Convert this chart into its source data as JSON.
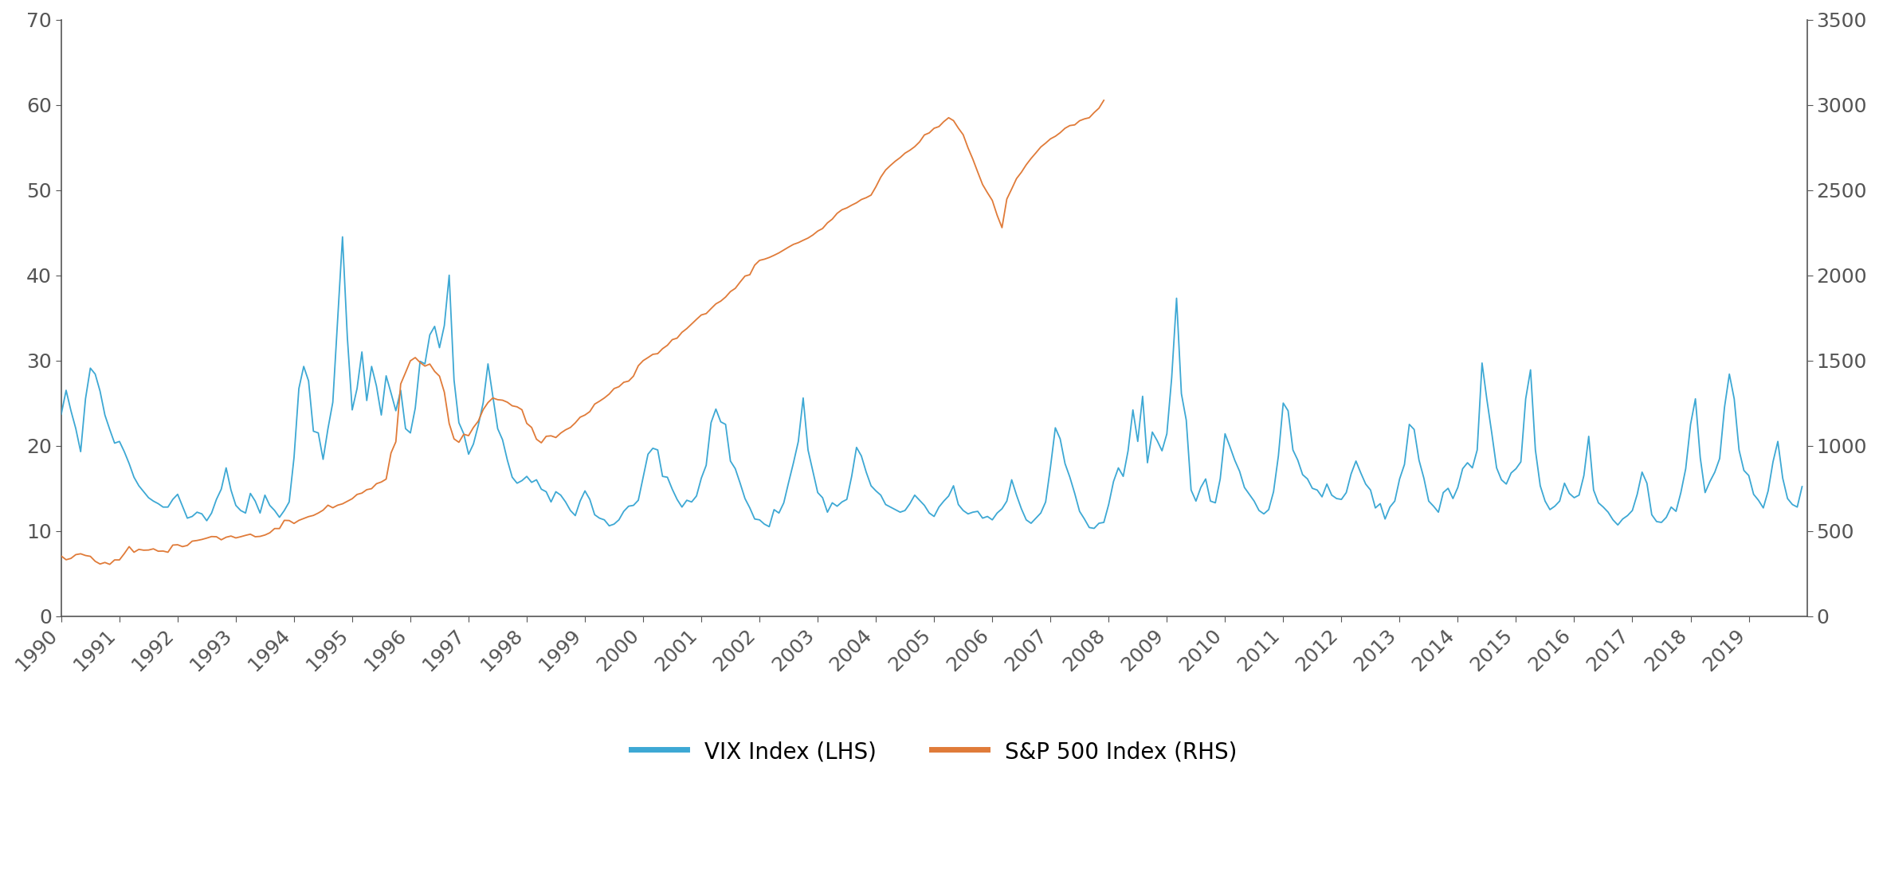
{
  "vix_color": "#3da8d4",
  "sp500_color": "#e07b39",
  "vix_label": "VIX Index (LHS)",
  "sp500_label": "S&P 500 Index (RHS)",
  "lhs_ylim": [
    0,
    70
  ],
  "rhs_ylim": [
    0,
    3500
  ],
  "lhs_yticks": [
    0,
    10,
    20,
    30,
    40,
    50,
    60,
    70
  ],
  "rhs_yticks": [
    0,
    500,
    1000,
    1500,
    2000,
    2500,
    3000,
    3500
  ],
  "xtick_labels": [
    "1990",
    "1991",
    "1992",
    "1993",
    "1994",
    "1995",
    "1996",
    "1997",
    "1998",
    "1999",
    "2000",
    "2001",
    "2002",
    "2003",
    "2004",
    "2005",
    "2006",
    "2007",
    "2008",
    "2009",
    "2010",
    "2011",
    "2012",
    "2013",
    "2014",
    "2015",
    "2016",
    "2017",
    "2018",
    "2019"
  ],
  "background_color": "#ffffff",
  "linewidth": 1.3,
  "spine_color": "#555555",
  "tick_labelsize": 18,
  "legend_fontsize": 20,
  "vix_data": [
    23.7,
    26.5,
    24.1,
    22.0,
    19.3,
    25.5,
    29.1,
    28.4,
    26.4,
    23.6,
    21.9,
    20.3,
    20.5,
    19.3,
    17.9,
    16.3,
    15.3,
    14.6,
    13.9,
    13.5,
    13.2,
    12.8,
    12.8,
    13.7,
    14.3,
    12.9,
    11.5,
    11.7,
    12.2,
    12.0,
    11.2,
    12.1,
    13.7,
    14.9,
    17.4,
    14.8,
    13.0,
    12.4,
    12.1,
    14.4,
    13.5,
    12.1,
    14.2,
    13.0,
    12.4,
    11.6,
    12.4,
    13.4,
    18.6,
    26.7,
    29.3,
    27.6,
    21.7,
    21.5,
    18.4,
    22.0,
    25.1,
    34.8,
    44.5,
    32.7,
    24.2,
    26.7,
    31.0,
    25.3,
    29.3,
    27.0,
    23.6,
    28.2,
    26.2,
    24.1,
    26.5,
    22.0,
    21.5,
    24.4,
    29.9,
    29.6,
    33.0,
    34.0,
    31.5,
    34.1,
    40.0,
    27.7,
    22.7,
    21.4,
    19.0,
    20.2,
    22.4,
    25.0,
    29.6,
    25.8,
    22.0,
    20.7,
    18.3,
    16.3,
    15.6,
    15.9,
    16.4,
    15.7,
    16.0,
    14.9,
    14.6,
    13.4,
    14.6,
    14.2,
    13.4,
    12.4,
    11.8,
    13.5,
    14.7,
    13.7,
    11.9,
    11.5,
    11.3,
    10.6,
    10.8,
    11.3,
    12.3,
    12.9,
    13.0,
    13.6,
    16.3,
    19.0,
    19.7,
    19.5,
    16.4,
    16.3,
    14.9,
    13.7,
    12.8,
    13.6,
    13.4,
    14.1,
    16.2,
    17.7,
    22.7,
    24.3,
    22.8,
    22.5,
    18.2,
    17.3,
    15.6,
    13.8,
    12.7,
    11.4,
    11.3,
    10.8,
    10.5,
    12.5,
    12.1,
    13.3,
    15.7,
    18.0,
    20.5,
    25.6,
    19.5,
    17.0,
    14.5,
    13.9,
    12.2,
    13.3,
    12.9,
    13.4,
    13.7,
    16.4,
    19.8,
    18.8,
    16.9,
    15.3,
    14.7,
    14.2,
    13.1,
    12.8,
    12.5,
    12.2,
    12.4,
    13.2,
    14.2,
    13.6,
    13.0,
    12.1,
    11.7,
    12.8,
    13.5,
    14.1,
    15.3,
    13.1,
    12.4,
    12.0,
    12.2,
    12.3,
    11.5,
    11.7,
    11.3,
    12.1,
    12.6,
    13.5,
    16.0,
    14.2,
    12.6,
    11.3,
    10.9,
    11.5,
    12.1,
    13.4,
    17.5,
    22.1,
    20.8,
    17.9,
    16.3,
    14.4,
    12.3,
    11.4,
    10.4,
    10.3,
    10.9,
    11.0,
    13.1,
    15.8,
    17.4,
    16.4,
    19.4,
    24.2,
    20.5,
    25.8,
    18.0,
    21.6,
    20.6,
    19.4,
    21.4,
    28.0,
    37.3,
    26.1,
    23.0,
    14.8,
    13.5,
    15.1,
    16.1,
    13.5,
    13.3,
    16.1,
    21.4,
    19.9,
    18.3,
    17.0,
    15.1,
    14.3,
    13.5,
    12.4,
    12.0,
    12.5,
    14.6,
    18.8,
    25.0,
    24.1,
    19.5,
    18.3,
    16.6,
    16.1,
    15.0,
    14.8,
    14.0,
    15.5,
    14.2,
    13.8,
    13.7,
    14.5,
    16.7,
    18.2,
    16.8,
    15.5,
    14.8,
    12.7,
    13.2,
    11.4,
    12.8,
    13.5,
    16.1,
    17.8,
    22.5,
    21.9,
    18.3,
    16.2,
    13.5,
    12.9,
    12.2,
    14.5,
    15.0,
    13.8,
    15.1,
    17.3,
    18.0,
    17.4,
    19.5,
    29.7,
    25.4,
    21.5,
    17.4,
    16.0,
    15.5,
    16.8,
    17.3,
    18.1,
    25.5,
    28.9,
    19.5,
    15.3,
    13.5,
    12.5,
    12.9,
    13.5,
    15.6,
    14.4,
    13.9,
    14.2,
    16.5,
    21.1,
    14.8,
    13.3,
    12.8,
    12.2,
    11.3,
    10.7,
    11.4,
    11.8,
    12.4,
    14.3,
    16.9,
    15.6,
    11.9,
    11.1,
    11.0,
    11.6,
    12.8,
    12.3,
    14.5,
    17.3,
    22.5,
    25.5,
    18.6,
    14.5,
    15.8,
    16.9,
    18.5,
    24.5,
    28.4,
    25.5,
    19.5,
    17.1,
    16.5,
    14.3,
    13.6,
    12.7,
    14.7,
    18.1,
    20.5,
    16.2,
    13.8,
    13.1,
    12.8,
    15.2
  ],
  "sp500_data": [
    353,
    331,
    339,
    361,
    366,
    356,
    351,
    322,
    306,
    315,
    304,
    330,
    330,
    367,
    408,
    375,
    392,
    387,
    388,
    395,
    381,
    382,
    375,
    417,
    419,
    408,
    415,
    440,
    444,
    450,
    458,
    467,
    466,
    448,
    463,
    470,
    459,
    466,
    474,
    481,
    466,
    468,
    476,
    489,
    514,
    514,
    562,
    561,
    544,
    562,
    573,
    584,
    591,
    605,
    622,
    651,
    636,
    651,
    659,
    674,
    689,
    714,
    722,
    742,
    748,
    777,
    787,
    804,
    957,
    1023,
    1362,
    1429,
    1498,
    1517,
    1488,
    1467,
    1479,
    1436,
    1408,
    1314,
    1130,
    1040,
    1020,
    1067,
    1059,
    1107,
    1144,
    1211,
    1253,
    1280,
    1270,
    1267,
    1255,
    1234,
    1228,
    1211,
    1131,
    1107,
    1038,
    1017,
    1055,
    1058,
    1048,
    1074,
    1093,
    1107,
    1134,
    1167,
    1180,
    1200,
    1244,
    1261,
    1280,
    1303,
    1335,
    1346,
    1372,
    1379,
    1408,
    1469,
    1499,
    1517,
    1536,
    1540,
    1569,
    1589,
    1622,
    1631,
    1665,
    1687,
    1714,
    1741,
    1767,
    1775,
    1804,
    1832,
    1848,
    1872,
    1904,
    1923,
    1960,
    1995,
    2003,
    2059,
    2087,
    2094,
    2104,
    2117,
    2131,
    2148,
    2165,
    2181,
    2191,
    2205,
    2218,
    2236,
    2259,
    2274,
    2307,
    2329,
    2363,
    2384,
    2395,
    2411,
    2425,
    2444,
    2455,
    2470,
    2519,
    2575,
    2617,
    2644,
    2669,
    2690,
    2716,
    2733,
    2754,
    2782,
    2823,
    2835,
    2862,
    2872,
    2901,
    2924,
    2907,
    2863,
    2824,
    2747,
    2680,
    2605,
    2532,
    2484,
    2439,
    2352,
    2279,
    2447,
    2506,
    2567,
    2604,
    2648,
    2685,
    2718,
    2752,
    2775,
    2800,
    2815,
    2836,
    2862,
    2878,
    2882,
    2906,
    2917,
    2924,
    2954,
    2980,
    3026
  ]
}
